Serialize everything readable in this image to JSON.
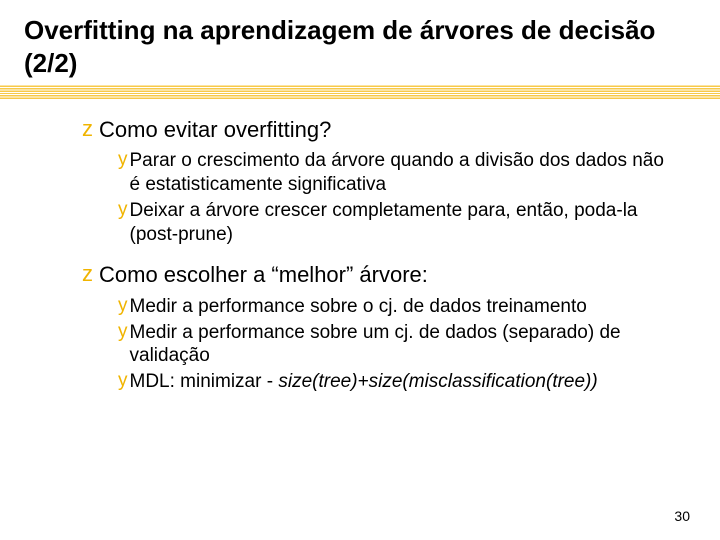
{
  "colors": {
    "bullet": "#f0b400",
    "text": "#000000",
    "background": "#ffffff",
    "underline_a": "#f7c948",
    "underline_b": "#ffffff"
  },
  "typography": {
    "title_fontsize": 26,
    "level1_fontsize": 22,
    "level2_fontsize": 19,
    "pagenum_fontsize": 14,
    "font_family": "Verdana"
  },
  "title": "Overfitting na aprendizagem de árvores de decisão (2/2)",
  "sections": [
    {
      "heading": "Como evitar overfitting?",
      "items": [
        "Parar o crescimento da árvore quando a divisão dos dados não é estatisticamente significativa",
        "Deixar a árvore crescer completamente para, então, poda-la (post-prune)"
      ]
    },
    {
      "heading": "Como escolher a “melhor” árvore:",
      "items": [
        "Medir a performance sobre o cj. de dados treinamento",
        "Medir a performance sobre um cj. de dados (separado) de validação"
      ],
      "last_item_prefix": "MDL: minimizar - ",
      "last_item_italic": "size(tree)+size(misclassification(tree))"
    }
  ],
  "page_number": "30"
}
